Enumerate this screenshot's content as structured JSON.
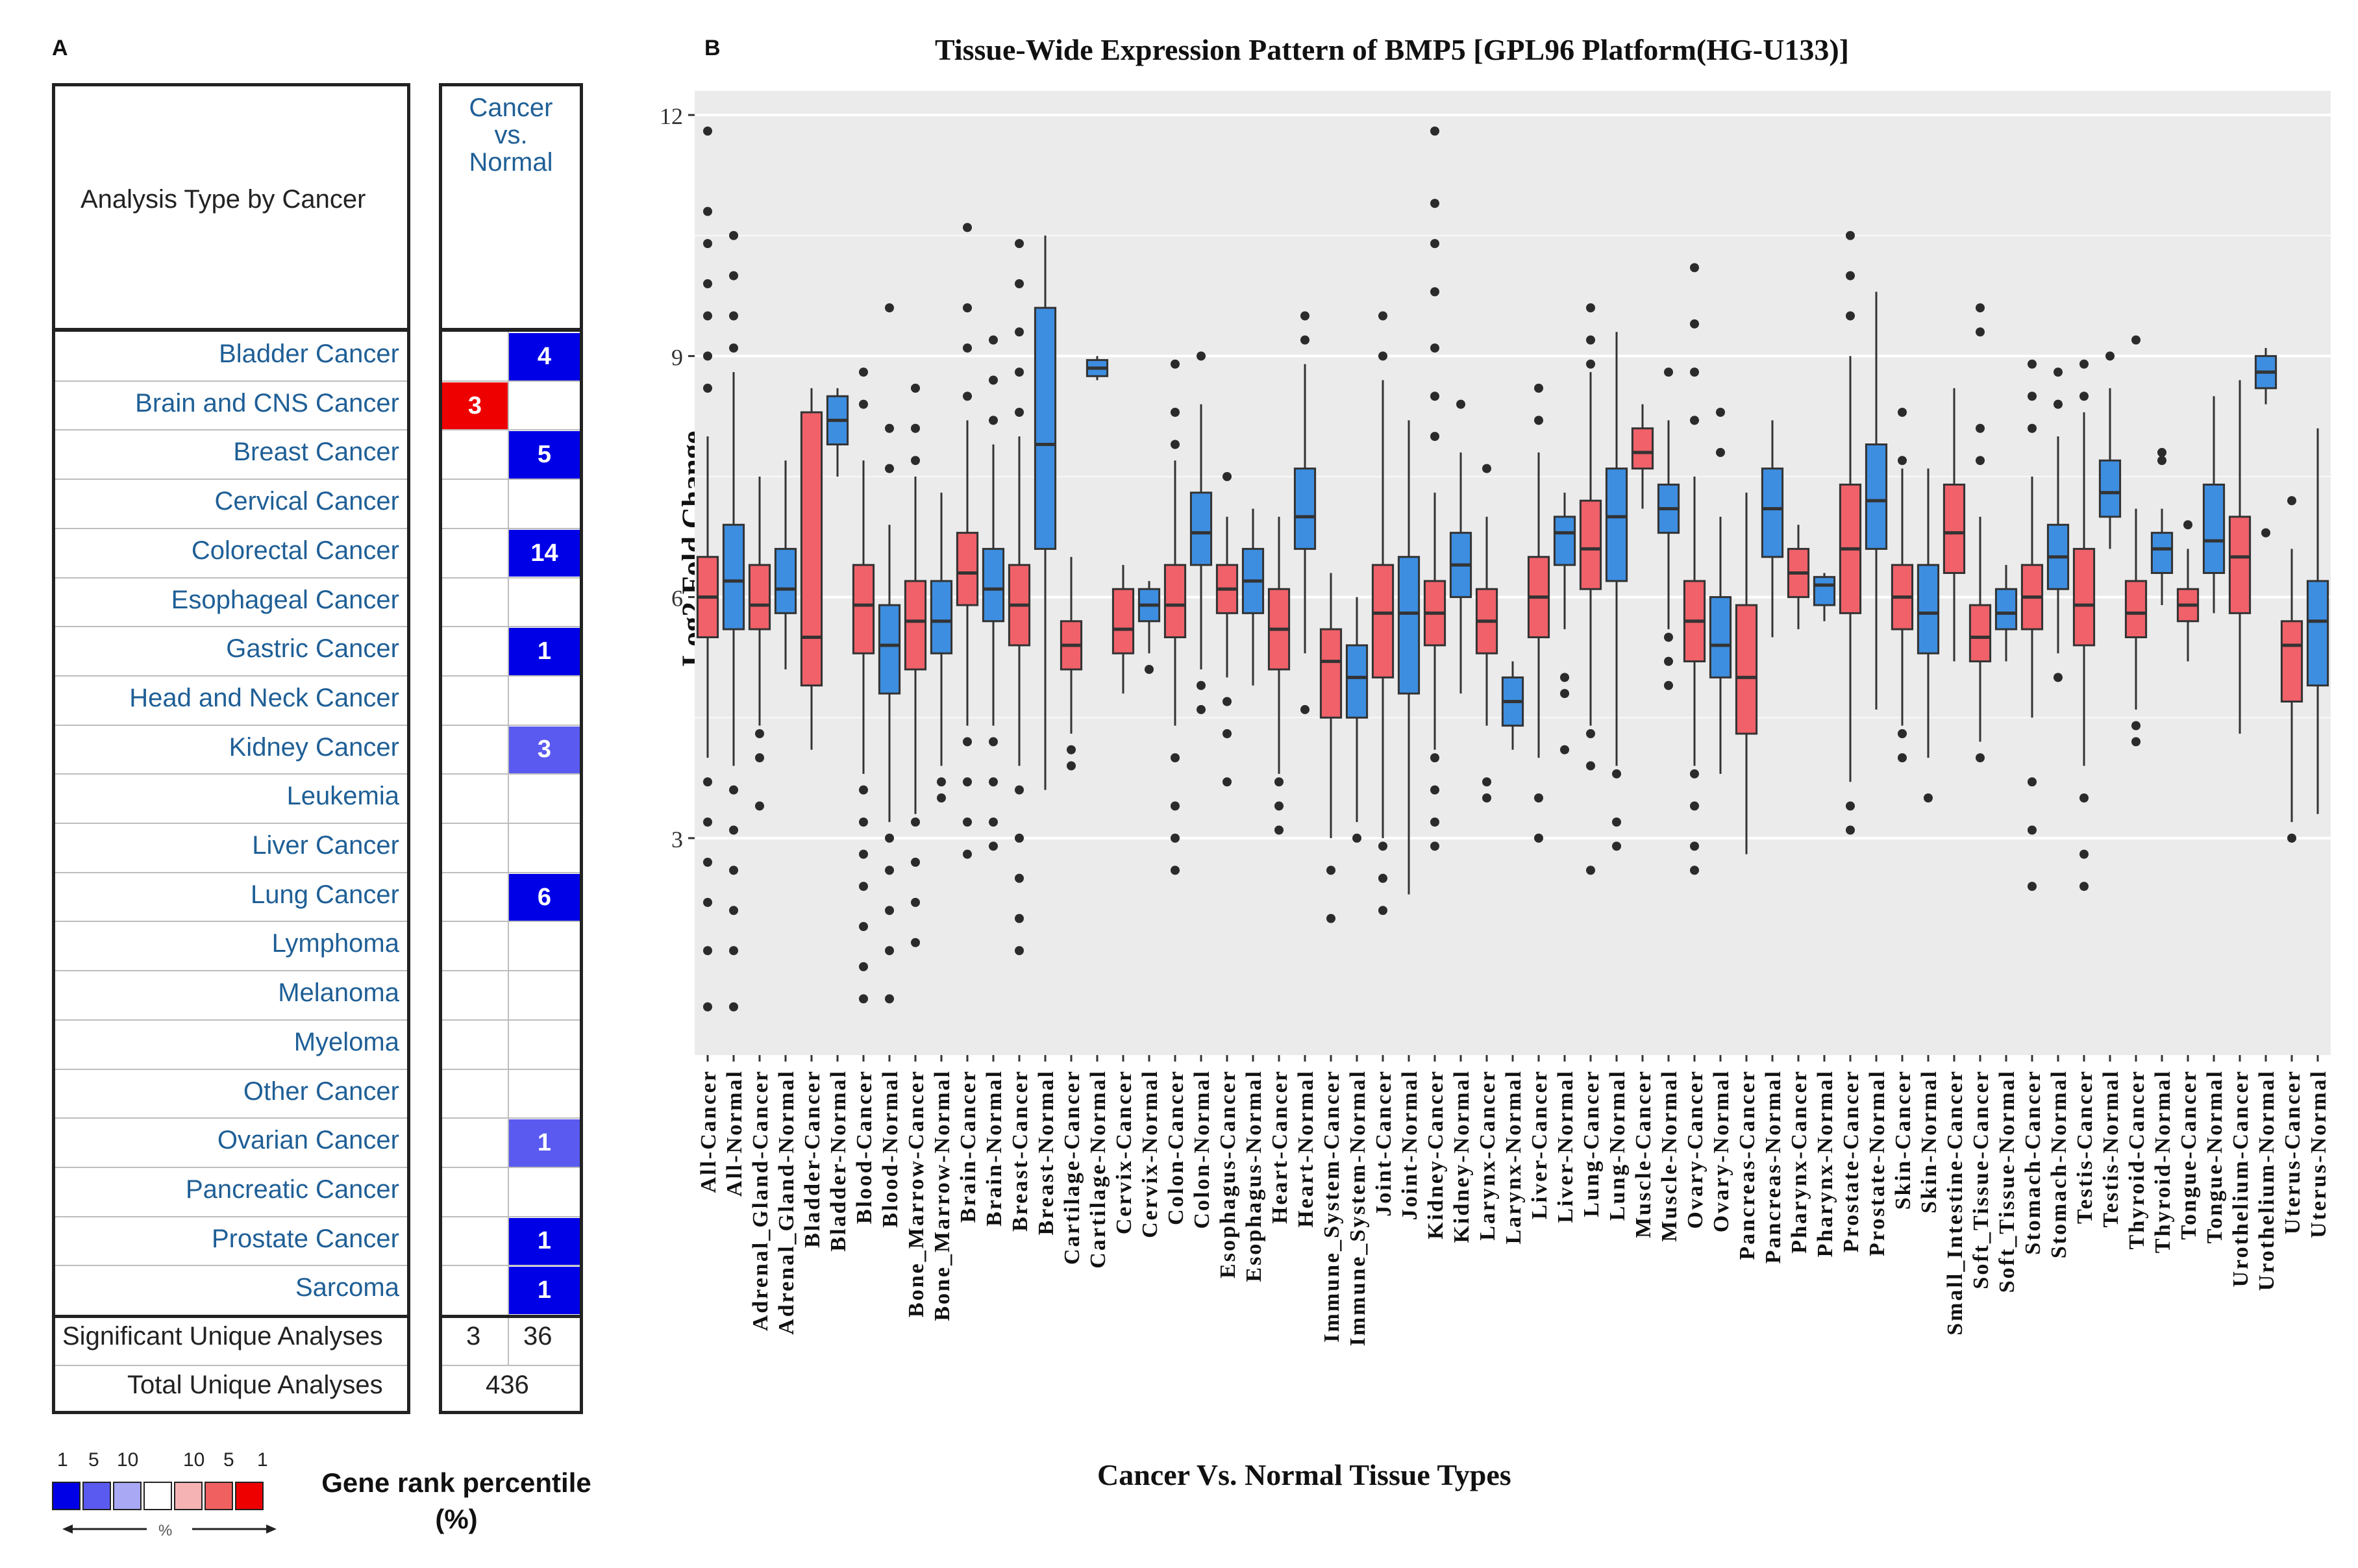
{
  "panel_a": {
    "letter": "A",
    "header_left": "Analysis Type by Cancer",
    "header_right_lines": [
      "Cancer",
      "vs.",
      "Normal"
    ],
    "rows": [
      {
        "label": "Bladder Cancer",
        "left": "",
        "right": "4"
      },
      {
        "label": "Brain and CNS Cancer",
        "left": "3",
        "right": ""
      },
      {
        "label": "Breast Cancer",
        "left": "",
        "right": "5"
      },
      {
        "label": "Cervical Cancer",
        "left": "",
        "right": ""
      },
      {
        "label": "Colorectal Cancer",
        "left": "",
        "right": "14"
      },
      {
        "label": "Esophageal Cancer",
        "left": "",
        "right": ""
      },
      {
        "label": "Gastric Cancer",
        "left": "",
        "right": "1"
      },
      {
        "label": "Head and Neck Cancer",
        "left": "",
        "right": ""
      },
      {
        "label": "Kidney Cancer",
        "left": "",
        "right": "3"
      },
      {
        "label": "Leukemia",
        "left": "",
        "right": ""
      },
      {
        "label": "Liver Cancer",
        "left": "",
        "right": ""
      },
      {
        "label": "Lung Cancer",
        "left": "",
        "right": "6"
      },
      {
        "label": "Lymphoma",
        "left": "",
        "right": ""
      },
      {
        "label": "Melanoma",
        "left": "",
        "right": ""
      },
      {
        "label": "Myeloma",
        "left": "",
        "right": ""
      },
      {
        "label": "Other Cancer",
        "left": "",
        "right": ""
      },
      {
        "label": "Ovarian Cancer",
        "left": "",
        "right": "1"
      },
      {
        "label": "Pancreatic Cancer",
        "left": "",
        "right": ""
      },
      {
        "label": "Prostate Cancer",
        "left": "",
        "right": "1"
      },
      {
        "label": "Sarcoma",
        "left": "",
        "right": "1"
      }
    ],
    "cell_colors": {
      "Bladder Cancer": "#0000e6",
      "Brain and CNS Cancer": "#ee0000",
      "Breast Cancer": "#0000e6",
      "Colorectal Cancer": "#0000e6",
      "Gastric Cancer": "#0000e6",
      "Kidney Cancer": "#5a5af0",
      "Lung Cancer": "#0000e6",
      "Ovarian Cancer": "#5a5af0",
      "Prostate Cancer": "#0000e6",
      "Sarcoma": "#0000e6"
    },
    "significant_label": "Significant Unique Analyses",
    "significant_left": "3",
    "significant_right": "36",
    "total_label": "Total Unique Analyses",
    "total_value": "436",
    "legend": {
      "numbers": [
        "1",
        "5",
        "10",
        "10",
        "5",
        "1"
      ],
      "colors": [
        "#0000e6",
        "#5a5af0",
        "#a8a8f5",
        "#ffffff",
        "#f5b3b3",
        "#f06060",
        "#ee0000"
      ],
      "percent_symbol": "%",
      "title_line1": "Gene rank percentile",
      "title_line2": "(%)"
    }
  },
  "chart_data": {
    "type": "box",
    "panel_letter": "B",
    "title": "Tissue-Wide Expression Pattern of BMP5 [GPL96 Platform(HG-U133)]",
    "xlabel": "Cancer  Vs. Normal Tissue Types",
    "ylabel": "Log2 Fold Change",
    "ylim": [
      0.3,
      12.3
    ],
    "yticks": [
      3,
      6,
      9,
      12
    ],
    "colors": {
      "Cancer": "#f0616a",
      "Normal": "#3d8ee0",
      "panel": "#ebebeb",
      "grid": "#ffffff"
    },
    "boxes": [
      {
        "label": "All-Cancer",
        "group": "Cancer",
        "q1": 5.5,
        "median": 6.0,
        "q3": 6.5,
        "wlo": 4.0,
        "whi": 8.0,
        "outliers": [
          11.8,
          10.8,
          10.4,
          9.9,
          9.5,
          9.0,
          8.6,
          3.7,
          3.2,
          2.7,
          2.2,
          1.6,
          0.9
        ]
      },
      {
        "label": "All-Normal",
        "group": "Normal",
        "q1": 5.6,
        "median": 6.2,
        "q3": 6.9,
        "wlo": 3.9,
        "whi": 8.8,
        "outliers": [
          10.5,
          10.0,
          9.5,
          9.1,
          3.6,
          3.1,
          2.6,
          2.1,
          1.6,
          0.9
        ]
      },
      {
        "label": "Adrenal_Gland-Cancer",
        "group": "Cancer",
        "q1": 5.6,
        "median": 5.9,
        "q3": 6.4,
        "wlo": 4.4,
        "whi": 7.5,
        "outliers": [
          4.3,
          4.0,
          3.4
        ]
      },
      {
        "label": "Adrenal_Gland-Normal",
        "group": "Normal",
        "q1": 5.8,
        "median": 6.1,
        "q3": 6.6,
        "wlo": 5.1,
        "whi": 7.7,
        "outliers": []
      },
      {
        "label": "Bladder-Cancer",
        "group": "Cancer",
        "q1": 4.9,
        "median": 5.5,
        "q3": 8.3,
        "wlo": 4.1,
        "whi": 8.6,
        "outliers": []
      },
      {
        "label": "Bladder-Normal",
        "group": "Normal",
        "q1": 7.9,
        "median": 8.2,
        "q3": 8.5,
        "wlo": 7.5,
        "whi": 8.6,
        "outliers": []
      },
      {
        "label": "Blood-Cancer",
        "group": "Cancer",
        "q1": 5.3,
        "median": 5.9,
        "q3": 6.4,
        "wlo": 3.8,
        "whi": 7.7,
        "outliers": [
          8.8,
          8.4,
          3.6,
          3.2,
          2.8,
          2.4,
          1.9,
          1.4,
          1.0
        ]
      },
      {
        "label": "Blood-Normal",
        "group": "Normal",
        "q1": 4.8,
        "median": 5.4,
        "q3": 5.9,
        "wlo": 3.2,
        "whi": 6.9,
        "outliers": [
          9.6,
          8.1,
          7.6,
          3.0,
          2.6,
          2.1,
          1.6,
          1.0
        ]
      },
      {
        "label": "Bone_Marrow-Cancer",
        "group": "Cancer",
        "q1": 5.1,
        "median": 5.7,
        "q3": 6.2,
        "wlo": 3.3,
        "whi": 7.5,
        "outliers": [
          8.6,
          8.1,
          7.7,
          3.2,
          2.7,
          2.2,
          1.7
        ]
      },
      {
        "label": "Bone_Marrow-Normal",
        "group": "Normal",
        "q1": 5.3,
        "median": 5.7,
        "q3": 6.2,
        "wlo": 3.9,
        "whi": 7.3,
        "outliers": [
          3.7,
          3.5
        ]
      },
      {
        "label": "Brain-Cancer",
        "group": "Cancer",
        "q1": 5.9,
        "median": 6.3,
        "q3": 6.8,
        "wlo": 4.4,
        "whi": 8.2,
        "outliers": [
          10.6,
          9.6,
          9.1,
          8.5,
          4.2,
          3.7,
          3.2,
          2.8
        ]
      },
      {
        "label": "Brain-Normal",
        "group": "Normal",
        "q1": 5.7,
        "median": 6.1,
        "q3": 6.6,
        "wlo": 4.4,
        "whi": 7.9,
        "outliers": [
          9.2,
          8.7,
          8.2,
          4.2,
          3.7,
          3.2,
          2.9
        ]
      },
      {
        "label": "Breast-Cancer",
        "group": "Cancer",
        "q1": 5.4,
        "median": 5.9,
        "q3": 6.4,
        "wlo": 3.9,
        "whi": 8.0,
        "outliers": [
          10.4,
          9.9,
          9.3,
          8.8,
          8.3,
          3.6,
          3.0,
          2.5,
          2.0,
          1.6
        ]
      },
      {
        "label": "Breast-Normal",
        "group": "Normal",
        "q1": 6.6,
        "median": 7.9,
        "q3": 9.6,
        "wlo": 3.6,
        "whi": 10.5,
        "outliers": []
      },
      {
        "label": "Cartilage-Cancer",
        "group": "Cancer",
        "q1": 5.1,
        "median": 5.4,
        "q3": 5.7,
        "wlo": 4.3,
        "whi": 6.5,
        "outliers": [
          4.1,
          3.9
        ]
      },
      {
        "label": "Cartilage-Normal",
        "group": "Normal",
        "q1": 8.75,
        "median": 8.85,
        "q3": 8.95,
        "wlo": 8.7,
        "whi": 9.0,
        "outliers": []
      },
      {
        "label": "Cervix-Cancer",
        "group": "Cancer",
        "q1": 5.3,
        "median": 5.6,
        "q3": 6.1,
        "wlo": 4.8,
        "whi": 6.4,
        "outliers": []
      },
      {
        "label": "Cervix-Normal",
        "group": "Normal",
        "q1": 5.7,
        "median": 5.9,
        "q3": 6.1,
        "wlo": 5.3,
        "whi": 6.2,
        "outliers": [
          5.1
        ]
      },
      {
        "label": "Colon-Cancer",
        "group": "Cancer",
        "q1": 5.5,
        "median": 5.9,
        "q3": 6.4,
        "wlo": 4.4,
        "whi": 7.7,
        "outliers": [
          8.9,
          8.3,
          7.9,
          4.0,
          3.4,
          3.0,
          2.6
        ]
      },
      {
        "label": "Colon-Normal",
        "group": "Normal",
        "q1": 6.4,
        "median": 6.8,
        "q3": 7.3,
        "wlo": 5.1,
        "whi": 8.4,
        "outliers": [
          9.0,
          4.9,
          4.6
        ]
      },
      {
        "label": "Esophagus-Cancer",
        "group": "Cancer",
        "q1": 5.8,
        "median": 6.1,
        "q3": 6.4,
        "wlo": 5.0,
        "whi": 7.0,
        "outliers": [
          7.5,
          4.7,
          4.3,
          3.7
        ]
      },
      {
        "label": "Esophagus-Normal",
        "group": "Normal",
        "q1": 5.8,
        "median": 6.2,
        "q3": 6.6,
        "wlo": 4.9,
        "whi": 7.1,
        "outliers": []
      },
      {
        "label": "Heart-Cancer",
        "group": "Cancer",
        "q1": 5.1,
        "median": 5.6,
        "q3": 6.1,
        "wlo": 3.8,
        "whi": 7.0,
        "outliers": [
          3.7,
          3.4,
          3.1
        ]
      },
      {
        "label": "Heart-Normal",
        "group": "Normal",
        "q1": 6.6,
        "median": 7.0,
        "q3": 7.6,
        "wlo": 5.3,
        "whi": 8.9,
        "outliers": [
          9.5,
          9.2,
          4.6
        ]
      },
      {
        "label": "Immune_System-Cancer",
        "group": "Cancer",
        "q1": 4.5,
        "median": 5.2,
        "q3": 5.6,
        "wlo": 3.0,
        "whi": 6.3,
        "outliers": [
          2.6,
          2.0
        ]
      },
      {
        "label": "Immune_System-Normal",
        "group": "Normal",
        "q1": 4.5,
        "median": 5.0,
        "q3": 5.4,
        "wlo": 3.2,
        "whi": 6.0,
        "outliers": [
          3.0
        ]
      },
      {
        "label": "Joint-Cancer",
        "group": "Cancer",
        "q1": 5.0,
        "median": 5.8,
        "q3": 6.4,
        "wlo": 3.0,
        "whi": 8.7,
        "outliers": [
          9.5,
          9.0,
          2.9,
          2.5,
          2.1
        ]
      },
      {
        "label": "Joint-Normal",
        "group": "Normal",
        "q1": 4.8,
        "median": 5.8,
        "q3": 6.5,
        "wlo": 2.3,
        "whi": 8.2,
        "outliers": []
      },
      {
        "label": "Kidney-Cancer",
        "group": "Cancer",
        "q1": 5.4,
        "median": 5.8,
        "q3": 6.2,
        "wlo": 4.1,
        "whi": 7.3,
        "outliers": [
          11.8,
          10.9,
          10.4,
          9.8,
          9.1,
          8.5,
          8.0,
          4.0,
          3.6,
          3.2,
          2.9
        ]
      },
      {
        "label": "Kidney-Normal",
        "group": "Normal",
        "q1": 6.0,
        "median": 6.4,
        "q3": 6.8,
        "wlo": 4.8,
        "whi": 7.8,
        "outliers": [
          8.4
        ]
      },
      {
        "label": "Larynx-Cancer",
        "group": "Cancer",
        "q1": 5.3,
        "median": 5.7,
        "q3": 6.1,
        "wlo": 4.4,
        "whi": 7.0,
        "outliers": [
          7.6,
          3.7,
          3.5
        ]
      },
      {
        "label": "Larynx-Normal",
        "group": "Normal",
        "q1": 4.4,
        "median": 4.7,
        "q3": 5.0,
        "wlo": 4.1,
        "whi": 5.2,
        "outliers": []
      },
      {
        "label": "Liver-Cancer",
        "group": "Cancer",
        "q1": 5.5,
        "median": 6.0,
        "q3": 6.5,
        "wlo": 4.0,
        "whi": 7.8,
        "outliers": [
          8.6,
          8.2,
          3.5,
          3.0
        ]
      },
      {
        "label": "Liver-Normal",
        "group": "Normal",
        "q1": 6.4,
        "median": 6.8,
        "q3": 7.0,
        "wlo": 5.6,
        "whi": 7.3,
        "outliers": [
          5.0,
          4.8,
          4.1
        ]
      },
      {
        "label": "Lung-Cancer",
        "group": "Cancer",
        "q1": 6.1,
        "median": 6.6,
        "q3": 7.2,
        "wlo": 4.4,
        "whi": 8.8,
        "outliers": [
          9.6,
          9.2,
          8.9,
          4.3,
          3.9,
          2.6
        ]
      },
      {
        "label": "Lung-Normal",
        "group": "Normal",
        "q1": 6.2,
        "median": 7.0,
        "q3": 7.6,
        "wlo": 3.9,
        "whi": 9.3,
        "outliers": [
          3.8,
          3.2,
          2.9
        ]
      },
      {
        "label": "Muscle-Cancer",
        "group": "Cancer",
        "q1": 7.6,
        "median": 7.8,
        "q3": 8.1,
        "wlo": 7.1,
        "whi": 8.4,
        "outliers": []
      },
      {
        "label": "Muscle-Normal",
        "group": "Normal",
        "q1": 6.8,
        "median": 7.1,
        "q3": 7.4,
        "wlo": 5.6,
        "whi": 8.2,
        "outliers": [
          8.8,
          5.5,
          5.2,
          4.9
        ]
      },
      {
        "label": "Ovary-Cancer",
        "group": "Cancer",
        "q1": 5.2,
        "median": 5.7,
        "q3": 6.2,
        "wlo": 3.9,
        "whi": 7.5,
        "outliers": [
          10.1,
          9.4,
          8.8,
          8.2,
          3.8,
          3.4,
          2.9,
          2.6
        ]
      },
      {
        "label": "Ovary-Normal",
        "group": "Normal",
        "q1": 5.0,
        "median": 5.4,
        "q3": 6.0,
        "wlo": 3.8,
        "whi": 7.0,
        "outliers": [
          8.3,
          7.8
        ]
      },
      {
        "label": "Pancreas-Cancer",
        "group": "Cancer",
        "q1": 4.3,
        "median": 5.0,
        "q3": 5.9,
        "wlo": 2.8,
        "whi": 7.3,
        "outliers": []
      },
      {
        "label": "Pancreas-Normal",
        "group": "Normal",
        "q1": 6.5,
        "median": 7.1,
        "q3": 7.6,
        "wlo": 5.5,
        "whi": 8.2,
        "outliers": []
      },
      {
        "label": "Pharynx-Cancer",
        "group": "Cancer",
        "q1": 6.0,
        "median": 6.3,
        "q3": 6.6,
        "wlo": 5.6,
        "whi": 6.9,
        "outliers": []
      },
      {
        "label": "Pharynx-Normal",
        "group": "Normal",
        "q1": 5.9,
        "median": 6.15,
        "q3": 6.25,
        "wlo": 5.7,
        "whi": 6.3,
        "outliers": []
      },
      {
        "label": "Prostate-Cancer",
        "group": "Cancer",
        "q1": 5.8,
        "median": 6.6,
        "q3": 7.4,
        "wlo": 3.7,
        "whi": 9.0,
        "outliers": [
          10.5,
          10.0,
          9.5,
          3.4,
          3.1
        ]
      },
      {
        "label": "Prostate-Normal",
        "group": "Normal",
        "q1": 6.6,
        "median": 7.2,
        "q3": 7.9,
        "wlo": 4.6,
        "whi": 9.8,
        "outliers": []
      },
      {
        "label": "Skin-Cancer",
        "group": "Cancer",
        "q1": 5.6,
        "median": 6.0,
        "q3": 6.4,
        "wlo": 4.4,
        "whi": 7.6,
        "outliers": [
          8.3,
          7.7,
          4.3,
          4.0
        ]
      },
      {
        "label": "Skin-Normal",
        "group": "Normal",
        "q1": 5.3,
        "median": 5.8,
        "q3": 6.4,
        "wlo": 4.0,
        "whi": 7.6,
        "outliers": [
          3.5
        ]
      },
      {
        "label": "Small_Intestine-Cancer",
        "group": "Cancer",
        "q1": 6.3,
        "median": 6.8,
        "q3": 7.4,
        "wlo": 5.2,
        "whi": 8.6,
        "outliers": []
      },
      {
        "label": "Soft_Tissue-Cancer",
        "group": "Cancer",
        "q1": 5.2,
        "median": 5.5,
        "q3": 5.9,
        "wlo": 4.2,
        "whi": 7.0,
        "outliers": [
          9.6,
          9.3,
          8.1,
          7.7,
          4.0
        ]
      },
      {
        "label": "Soft_Tissue-Normal",
        "group": "Normal",
        "q1": 5.6,
        "median": 5.8,
        "q3": 6.1,
        "wlo": 5.2,
        "whi": 6.4,
        "outliers": []
      },
      {
        "label": "Stomach-Cancer",
        "group": "Cancer",
        "q1": 5.6,
        "median": 6.0,
        "q3": 6.4,
        "wlo": 4.5,
        "whi": 7.5,
        "outliers": [
          8.9,
          8.5,
          8.1,
          3.7,
          3.1,
          2.4
        ]
      },
      {
        "label": "Stomach-Normal",
        "group": "Normal",
        "q1": 6.1,
        "median": 6.5,
        "q3": 6.9,
        "wlo": 5.3,
        "whi": 8.0,
        "outliers": [
          8.8,
          8.4,
          5.0
        ]
      },
      {
        "label": "Testis-Cancer",
        "group": "Cancer",
        "q1": 5.4,
        "median": 5.9,
        "q3": 6.6,
        "wlo": 3.9,
        "whi": 8.3,
        "outliers": [
          8.9,
          8.5,
          3.5,
          2.8,
          2.4
        ]
      },
      {
        "label": "Testis-Normal",
        "group": "Normal",
        "q1": 7.0,
        "median": 7.3,
        "q3": 7.7,
        "wlo": 6.6,
        "whi": 8.6,
        "outliers": [
          9.0
        ]
      },
      {
        "label": "Thyroid-Cancer",
        "group": "Cancer",
        "q1": 5.5,
        "median": 5.8,
        "q3": 6.2,
        "wlo": 4.6,
        "whi": 7.1,
        "outliers": [
          9.2,
          4.4,
          4.2
        ]
      },
      {
        "label": "Thyroid-Normal",
        "group": "Normal",
        "q1": 6.3,
        "median": 6.6,
        "q3": 6.8,
        "wlo": 5.9,
        "whi": 7.1,
        "outliers": [
          7.8,
          7.7
        ]
      },
      {
        "label": "Tongue-Cancer",
        "group": "Cancer",
        "q1": 5.7,
        "median": 5.9,
        "q3": 6.1,
        "wlo": 5.2,
        "whi": 6.6,
        "outliers": [
          6.9
        ]
      },
      {
        "label": "Tongue-Normal",
        "group": "Normal",
        "q1": 6.3,
        "median": 6.7,
        "q3": 7.4,
        "wlo": 5.8,
        "whi": 8.5,
        "outliers": []
      },
      {
        "label": "Urothelium-Cancer",
        "group": "Cancer",
        "q1": 5.8,
        "median": 6.5,
        "q3": 7.0,
        "wlo": 4.3,
        "whi": 8.7,
        "outliers": []
      },
      {
        "label": "Urothelium-Normal",
        "group": "Normal",
        "q1": 8.6,
        "median": 8.8,
        "q3": 9.0,
        "wlo": 8.4,
        "whi": 9.1,
        "outliers": [
          6.8
        ]
      },
      {
        "label": "Uterus-Cancer",
        "group": "Cancer",
        "q1": 4.7,
        "median": 5.4,
        "q3": 5.7,
        "wlo": 3.2,
        "whi": 6.6,
        "outliers": [
          7.2,
          3.0
        ]
      },
      {
        "label": "Uterus-Normal",
        "group": "Normal",
        "q1": 4.9,
        "median": 5.7,
        "q3": 6.2,
        "wlo": 3.3,
        "whi": 8.1,
        "outliers": []
      }
    ]
  }
}
